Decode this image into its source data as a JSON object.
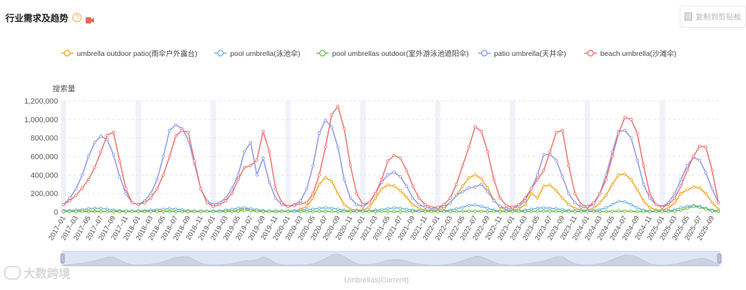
{
  "header": {
    "title": "行业需求及趋势",
    "help_glyph": "?",
    "copy_label": "复制到剪贴板"
  },
  "watermark": {
    "text": "大数跨境"
  },
  "colors": {
    "accent_icon": "#e8674d"
  },
  "chart_data": {
    "type": "line",
    "ylabel": "搜索量",
    "ylim": [
      0,
      1200000
    ],
    "yticks": [
      0,
      200000,
      400000,
      600000,
      800000,
      1000000,
      1200000
    ],
    "ytick_labels": [
      "0",
      "200,000",
      "400,000",
      "600,000",
      "800,000",
      "1,000,000",
      "1,200,000"
    ],
    "x_labels": [
      "2017–01",
      "2017–03",
      "2017–05",
      "2017–07",
      "2017–09",
      "2017–11",
      "2018–01",
      "2018–03",
      "2018–05",
      "2018–07",
      "2018–09",
      "2018–11",
      "2019–01",
      "2019–03",
      "2019–05",
      "2019–07",
      "2019–09",
      "2019–11",
      "2020–01",
      "2020–03",
      "2020–05",
      "2020–07",
      "2020–09",
      "2020–11",
      "2021–01",
      "2021–03",
      "2021–05",
      "2021–07",
      "2021–09",
      "2021–11",
      "2022–01",
      "2022–03",
      "2022–05",
      "2022–07",
      "2022–09",
      "2022–11",
      "2023–01",
      "2023–03",
      "2023–05",
      "2023–07",
      "2023–09",
      "2023–11",
      "2024–01",
      "2024–03",
      "2024–05",
      "2024–07",
      "2024–09",
      "2024–11",
      "2025–01",
      "2025–03",
      "2025–05",
      "2025–07",
      "2025–09"
    ],
    "grid": "horizontal dashed",
    "legend_position": "top",
    "slider_label": "Umbrellas(Current)",
    "series": [
      {
        "name": "umbrella outdoor patio(雨伞户外露台)",
        "color": "#f5a623",
        "values": [
          5000,
          5000,
          8000,
          10000,
          12000,
          10000,
          8000,
          5000,
          3000,
          3000,
          3000,
          5000,
          5000,
          5000,
          8000,
          10000,
          12000,
          10000,
          8000,
          5000,
          3000,
          3000,
          3000,
          5000,
          5000,
          5000,
          8000,
          12000,
          20000,
          40000,
          20000,
          10000,
          5000,
          3000,
          3000,
          5000,
          5000,
          10000,
          30000,
          60000,
          150000,
          300000,
          370000,
          330000,
          200000,
          80000,
          30000,
          20000,
          20000,
          50000,
          150000,
          250000,
          290000,
          280000,
          230000,
          160000,
          80000,
          40000,
          20000,
          20000,
          20000,
          40000,
          100000,
          180000,
          280000,
          370000,
          400000,
          360000,
          260000,
          130000,
          50000,
          20000,
          20000,
          30000,
          80000,
          200000,
          150000,
          280000,
          290000,
          230000,
          150000,
          80000,
          40000,
          20000,
          20000,
          40000,
          100000,
          180000,
          300000,
          400000,
          410000,
          350000,
          240000,
          120000,
          50000,
          20000,
          20000,
          40000,
          100000,
          200000,
          240000,
          270000,
          260000,
          200000,
          100000,
          30000
        ]
      },
      {
        "name": "pool umbrella(泳池伞)",
        "color": "#6fb1e8",
        "values": [
          15000,
          15000,
          20000,
          25000,
          35000,
          40000,
          40000,
          30000,
          20000,
          15000,
          10000,
          10000,
          12000,
          15000,
          20000,
          25000,
          30000,
          35000,
          30000,
          25000,
          15000,
          10000,
          10000,
          10000,
          10000,
          12000,
          20000,
          30000,
          40000,
          45000,
          35000,
          25000,
          15000,
          10000,
          10000,
          10000,
          10000,
          15000,
          20000,
          25000,
          30000,
          40000,
          45000,
          40000,
          30000,
          20000,
          10000,
          10000,
          10000,
          12000,
          20000,
          25000,
          35000,
          45000,
          40000,
          30000,
          20000,
          12000,
          10000,
          10000,
          10000,
          12000,
          20000,
          35000,
          50000,
          70000,
          75000,
          60000,
          40000,
          20000,
          10000,
          10000,
          10000,
          12000,
          20000,
          30000,
          40000,
          45000,
          40000,
          35000,
          25000,
          15000,
          10000,
          10000,
          10000,
          15000,
          25000,
          45000,
          80000,
          115000,
          110000,
          80000,
          45000,
          20000,
          10000,
          10000,
          10000,
          12000,
          25000,
          45000,
          60000,
          70000,
          60000,
          40000,
          20000,
          10000
        ]
      },
      {
        "name": "pool umbrellas outdoor(室外游泳池遮阳伞)",
        "color": "#6cc24a",
        "values": [
          5000,
          5000,
          5000,
          5000,
          5000,
          5000,
          5000,
          5000,
          5000,
          5000,
          5000,
          5000,
          5000,
          5000,
          5000,
          5000,
          5000,
          5000,
          5000,
          5000,
          5000,
          5000,
          5000,
          5000,
          5000,
          5000,
          5000,
          5000,
          10000,
          20000,
          15000,
          8000,
          5000,
          5000,
          5000,
          5000,
          5000,
          5000,
          5000,
          5000,
          5000,
          8000,
          8000,
          5000,
          5000,
          5000,
          5000,
          5000,
          5000,
          5000,
          5000,
          5000,
          5000,
          5000,
          5000,
          5000,
          5000,
          5000,
          5000,
          5000,
          5000,
          5000,
          5000,
          5000,
          8000,
          10000,
          10000,
          8000,
          5000,
          5000,
          5000,
          5000,
          5000,
          5000,
          5000,
          5000,
          8000,
          10000,
          10000,
          8000,
          5000,
          5000,
          5000,
          5000,
          5000,
          5000,
          5000,
          5000,
          8000,
          10000,
          10000,
          8000,
          5000,
          5000,
          5000,
          5000,
          5000,
          5000,
          10000,
          20000,
          40000,
          60000,
          50000,
          30000,
          10000,
          5000
        ]
      },
      {
        "name": "patio umbrella(天井伞)",
        "color": "#8f9ae8",
        "values": [
          80000,
          150000,
          250000,
          400000,
          600000,
          750000,
          820000,
          780000,
          620000,
          380000,
          200000,
          100000,
          80000,
          120000,
          200000,
          350000,
          600000,
          880000,
          940000,
          900000,
          780000,
          520000,
          250000,
          120000,
          80000,
          100000,
          150000,
          250000,
          400000,
          650000,
          750000,
          400000,
          580000,
          320000,
          150000,
          80000,
          60000,
          80000,
          120000,
          250000,
          500000,
          850000,
          990000,
          920000,
          700000,
          350000,
          150000,
          80000,
          60000,
          100000,
          200000,
          320000,
          400000,
          430000,
          380000,
          280000,
          150000,
          80000,
          50000,
          40000,
          40000,
          60000,
          100000,
          180000,
          220000,
          260000,
          270000,
          300000,
          220000,
          120000,
          60000,
          40000,
          40000,
          60000,
          120000,
          250000,
          400000,
          620000,
          620000,
          560000,
          380000,
          200000,
          100000,
          50000,
          50000,
          80000,
          200000,
          400000,
          650000,
          870000,
          880000,
          800000,
          560000,
          300000,
          150000,
          80000,
          60000,
          100000,
          200000,
          350000,
          500000,
          590000,
          560000,
          420000,
          250000,
          100000
        ]
      },
      {
        "name": "beach umbrella(沙滩伞)",
        "color": "#f07470",
        "values": [
          80000,
          120000,
          180000,
          260000,
          350000,
          480000,
          650000,
          830000,
          860000,
          550000,
          250000,
          100000,
          80000,
          100000,
          150000,
          250000,
          400000,
          600000,
          820000,
          880000,
          860000,
          550000,
          250000,
          100000,
          60000,
          80000,
          120000,
          200000,
          350000,
          480000,
          500000,
          560000,
          870000,
          650000,
          250000,
          100000,
          60000,
          70000,
          90000,
          100000,
          200000,
          400000,
          700000,
          1050000,
          1140000,
          900000,
          500000,
          200000,
          80000,
          100000,
          200000,
          350000,
          550000,
          610000,
          580000,
          450000,
          280000,
          150000,
          80000,
          50000,
          50000,
          80000,
          150000,
          300000,
          500000,
          700000,
          920000,
          870000,
          650000,
          350000,
          150000,
          70000,
          50000,
          80000,
          150000,
          250000,
          350000,
          450000,
          650000,
          860000,
          880000,
          500000,
          200000,
          80000,
          60000,
          100000,
          200000,
          350000,
          600000,
          850000,
          1020000,
          1000000,
          850000,
          500000,
          200000,
          80000,
          50000,
          80000,
          150000,
          280000,
          450000,
          600000,
          710000,
          700000,
          450000,
          100000
        ]
      }
    ]
  }
}
